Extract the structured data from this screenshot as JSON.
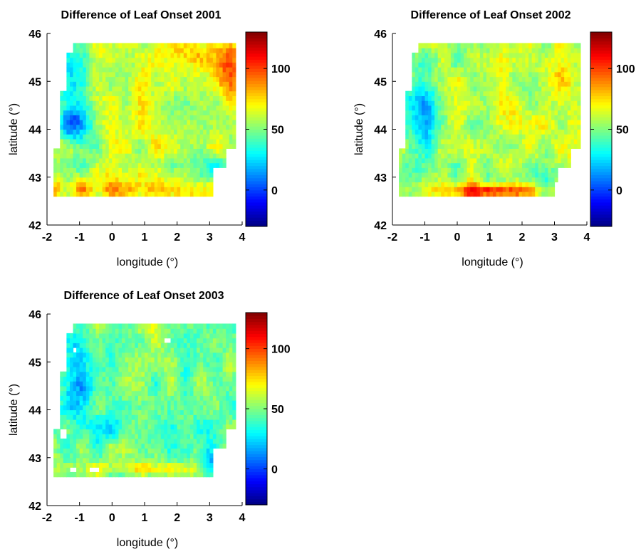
{
  "figure": {
    "background": "#ffffff",
    "colormap": "jet"
  },
  "chart_data": [
    {
      "type": "heatmap",
      "title": "Difference of Leaf Onset 2001",
      "xlabel": "longitude (°)",
      "ylabel": "latitude (°)",
      "xlim": [
        -2,
        4
      ],
      "ylim": [
        42,
        46
      ],
      "xticks": [
        "-2",
        "-1",
        "0",
        "1",
        "2",
        "3",
        "4"
      ],
      "yticks": [
        "42",
        "43",
        "44",
        "45",
        "46"
      ],
      "colorbar": {
        "clim": [
          -30,
          130
        ],
        "ticks": [
          "0",
          "50",
          "100"
        ]
      },
      "grid": false,
      "region": {
        "lon_range": [
          -1.75,
          3.85
        ],
        "lat_range": [
          42.6,
          45.85
        ]
      },
      "value_summary": {
        "typical": 60,
        "min": -10,
        "max": 110,
        "low_area": "around lon -1, lat 44 (~10)",
        "high_area": "south edge lat 42.8 and east edge lon 3.5 (~90–100)"
      }
    },
    {
      "type": "heatmap",
      "title": "Difference of Leaf Onset 2002",
      "xlabel": "longitude (°)",
      "ylabel": "latitude (°)",
      "xlim": [
        -2,
        4
      ],
      "ylim": [
        42,
        46
      ],
      "xticks": [
        "-2",
        "-1",
        "0",
        "1",
        "2",
        "3",
        "4"
      ],
      "yticks": [
        "42",
        "43",
        "44",
        "45",
        "46"
      ],
      "colorbar": {
        "clim": [
          -30,
          130
        ],
        "ticks": [
          "0",
          "50",
          "100"
        ]
      },
      "grid": false,
      "region": {
        "lon_range": [
          -1.75,
          3.85
        ],
        "lat_range": [
          42.6,
          45.85
        ]
      },
      "value_summary": {
        "typical": 55,
        "min": 0,
        "max": 125,
        "low_area": "around lon -1, lat 44–45 (~15)",
        "high_area": "south edge lat 42.7, lon 0–2 (~115–125)"
      }
    },
    {
      "type": "heatmap",
      "title": "Difference of Leaf Onset 2003",
      "xlabel": "longitude (°)",
      "ylabel": "latitude (°)",
      "xlim": [
        -2,
        4
      ],
      "ylim": [
        42,
        46
      ],
      "xticks": [
        "-2",
        "-1",
        "0",
        "1",
        "2",
        "3",
        "4"
      ],
      "yticks": [
        "42",
        "43",
        "44",
        "45",
        "46"
      ],
      "colorbar": {
        "clim": [
          -30,
          130
        ],
        "ticks": [
          "0",
          "50",
          "100"
        ]
      },
      "grid": false,
      "region": {
        "lon_range": [
          -1.75,
          3.85
        ],
        "lat_range": [
          42.6,
          45.85
        ]
      },
      "value_summary": {
        "typical": 48,
        "min": -10,
        "max": 90,
        "low_area": "around lon -1, lat 44 (~15) and lon 3, lat 43 (~10)",
        "high_area": "south edge lat 42.8 (~75–85)"
      }
    }
  ]
}
